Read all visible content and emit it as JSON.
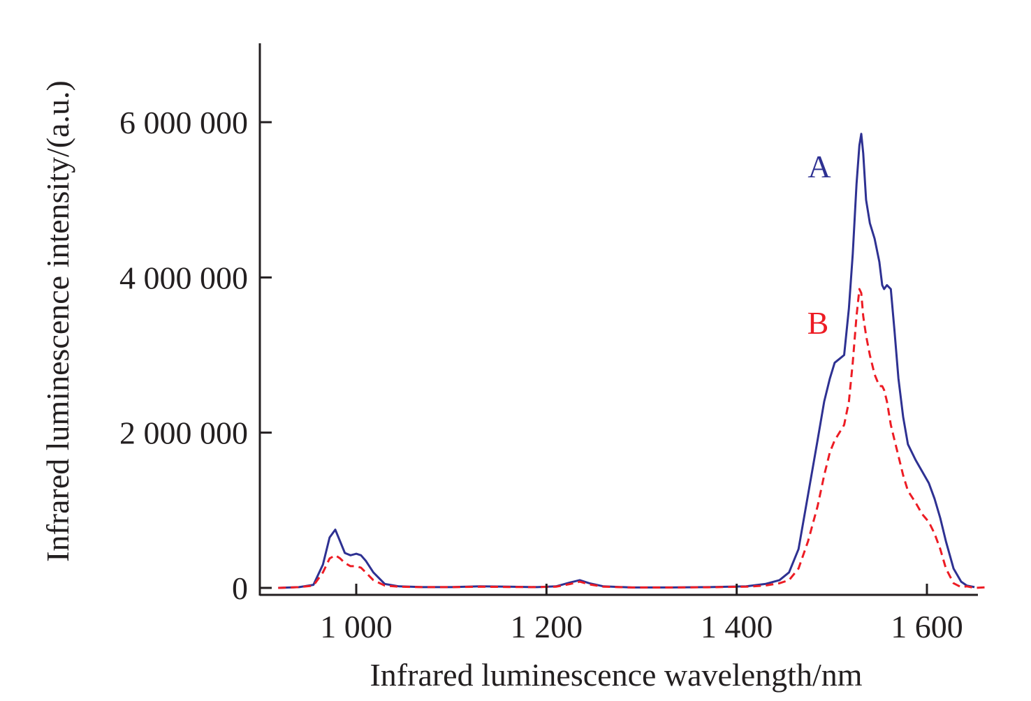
{
  "chart_data": {
    "type": "line",
    "xlabel": "Infrared luminescence wavelength/nm",
    "ylabel": "Infrared luminescence intensity/(a.u.)",
    "xlim": [
      918,
      1650
    ],
    "ylim": [
      -80000,
      7000000
    ],
    "x_ticks": [
      1000,
      1200,
      1400,
      1600
    ],
    "x_tick_labels": [
      "1 000",
      "1 200",
      "1 400",
      "1 600"
    ],
    "y_ticks": [
      0,
      2000000,
      4000000,
      6000000
    ],
    "y_tick_labels": [
      "0",
      "2 000 000",
      "4 000 000",
      "6 000 000"
    ],
    "grid": false,
    "legend": "none (series labeled inline)",
    "series": [
      {
        "name": "A",
        "color": "#2e3192",
        "style": "solid",
        "x": [
          918,
          940,
          955,
          965,
          972,
          978,
          983,
          988,
          994,
          1000,
          1005,
          1010,
          1018,
          1030,
          1045,
          1070,
          1100,
          1130,
          1160,
          1190,
          1210,
          1225,
          1235,
          1245,
          1260,
          1290,
          1330,
          1370,
          1410,
          1430,
          1445,
          1455,
          1465,
          1475,
          1485,
          1492,
          1498,
          1503,
          1508,
          1513,
          1518,
          1522,
          1526,
          1529,
          1531,
          1533,
          1536,
          1540,
          1545,
          1550,
          1553,
          1555,
          1558,
          1562,
          1566,
          1570,
          1575,
          1580,
          1588,
          1595,
          1602,
          1608,
          1614,
          1620,
          1628,
          1636,
          1642,
          1650
        ],
        "y": [
          0,
          10000,
          40000,
          300000,
          650000,
          750000,
          600000,
          450000,
          420000,
          440000,
          420000,
          350000,
          200000,
          50000,
          20000,
          10000,
          10000,
          20000,
          15000,
          10000,
          20000,
          70000,
          100000,
          60000,
          20000,
          5000,
          5000,
          10000,
          20000,
          50000,
          100000,
          200000,
          500000,
          1200000,
          1900000,
          2400000,
          2700000,
          2900000,
          2950000,
          3000000,
          3600000,
          4300000,
          5200000,
          5700000,
          5850000,
          5600000,
          5000000,
          4700000,
          4500000,
          4200000,
          3900000,
          3850000,
          3900000,
          3850000,
          3300000,
          2700000,
          2200000,
          1850000,
          1650000,
          1500000,
          1350000,
          1150000,
          900000,
          600000,
          250000,
          80000,
          30000,
          10000
        ]
      },
      {
        "name": "B",
        "color": "#ed1c24",
        "style": "dashed",
        "x": [
          918,
          940,
          955,
          965,
          972,
          978,
          983,
          988,
          994,
          1000,
          1005,
          1010,
          1018,
          1030,
          1045,
          1070,
          1100,
          1130,
          1160,
          1190,
          1210,
          1225,
          1235,
          1245,
          1260,
          1290,
          1330,
          1370,
          1410,
          1430,
          1445,
          1455,
          1465,
          1475,
          1485,
          1492,
          1498,
          1503,
          1508,
          1513,
          1518,
          1522,
          1526,
          1529,
          1531,
          1533,
          1536,
          1540,
          1545,
          1550,
          1553,
          1555,
          1558,
          1562,
          1566,
          1570,
          1575,
          1580,
          1588,
          1595,
          1602,
          1608,
          1614,
          1620,
          1628,
          1636,
          1642,
          1650,
          1665
        ],
        "y": [
          0,
          10000,
          30000,
          200000,
          380000,
          420000,
          380000,
          320000,
          280000,
          280000,
          260000,
          200000,
          100000,
          30000,
          15000,
          10000,
          10000,
          15000,
          12000,
          10000,
          15000,
          50000,
          80000,
          45000,
          15000,
          5000,
          5000,
          8000,
          15000,
          30000,
          60000,
          100000,
          250000,
          600000,
          1050000,
          1450000,
          1750000,
          1900000,
          2000000,
          2100000,
          2400000,
          2900000,
          3500000,
          3850000,
          3800000,
          3500000,
          3250000,
          3000000,
          2750000,
          2600000,
          2600000,
          2550000,
          2400000,
          2100000,
          1900000,
          1700000,
          1450000,
          1250000,
          1100000,
          950000,
          850000,
          700000,
          500000,
          250000,
          60000,
          10000,
          20000,
          0,
          10000
        ]
      }
    ]
  }
}
